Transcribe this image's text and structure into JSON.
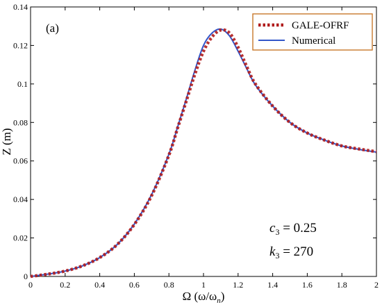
{
  "chart_data": {
    "type": "line",
    "panel_label": "(a)",
    "xlabel": "Ω (ω/ω",
    "xlabel_sub": "n",
    "xlabel_close": ")",
    "ylabel": "Z (m)",
    "xlim": [
      0,
      2
    ],
    "ylim": [
      0,
      0.14
    ],
    "xticks": [
      0,
      0.2,
      0.4,
      0.6,
      0.8,
      1,
      1.2,
      1.4,
      1.6,
      1.8,
      2
    ],
    "xtick_labels": [
      "0",
      "0.2",
      "0.4",
      "0.6",
      "0.8",
      "1",
      "1.2",
      "1.4",
      "1.6",
      "1.8",
      "2"
    ],
    "yticks": [
      0,
      0.02,
      0.04,
      0.06,
      0.08,
      0.1,
      0.12,
      0.14
    ],
    "ytick_labels": [
      "0",
      "0.02",
      "0.04",
      "0.06",
      "0.08",
      "0.1",
      "0.12",
      "0.14"
    ],
    "grid": false,
    "legend_position": "top-right",
    "series": [
      {
        "name": "GALE-OFRF",
        "color": "#b01c1c",
        "style": "dotted",
        "x": [
          0,
          0.1,
          0.2,
          0.3,
          0.4,
          0.5,
          0.6,
          0.7,
          0.8,
          0.85,
          0.9,
          0.95,
          1.0,
          1.05,
          1.1,
          1.15,
          1.2,
          1.25,
          1.3,
          1.4,
          1.5,
          1.6,
          1.7,
          1.8,
          1.9,
          2.0
        ],
        "y": [
          0.0,
          0.0012,
          0.0028,
          0.0055,
          0.0098,
          0.0165,
          0.027,
          0.042,
          0.063,
          0.077,
          0.091,
          0.105,
          0.117,
          0.1245,
          0.128,
          0.1265,
          0.119,
          0.109,
          0.1,
          0.0885,
          0.08,
          0.0745,
          0.0708,
          0.0678,
          0.0662,
          0.0648
        ]
      },
      {
        "name": "Numerical",
        "color": "#3356c9",
        "style": "solid",
        "x": [
          0,
          0.1,
          0.2,
          0.3,
          0.4,
          0.5,
          0.6,
          0.7,
          0.8,
          0.85,
          0.9,
          0.95,
          1.0,
          1.05,
          1.1,
          1.15,
          1.2,
          1.25,
          1.3,
          1.4,
          1.5,
          1.6,
          1.7,
          1.8,
          1.9,
          2.0
        ],
        "y": [
          0.0,
          0.0012,
          0.0028,
          0.0055,
          0.0098,
          0.0165,
          0.0272,
          0.0425,
          0.0635,
          0.0775,
          0.092,
          0.107,
          0.12,
          0.1265,
          0.1285,
          0.125,
          0.117,
          0.108,
          0.0995,
          0.0885,
          0.08,
          0.0745,
          0.0708,
          0.0678,
          0.066,
          0.0646
        ]
      }
    ],
    "annotations": [
      {
        "base": "c",
        "sub": "3",
        "rest": " = 0.25"
      },
      {
        "base": "k",
        "sub": "3",
        "rest": " = 270"
      }
    ]
  }
}
